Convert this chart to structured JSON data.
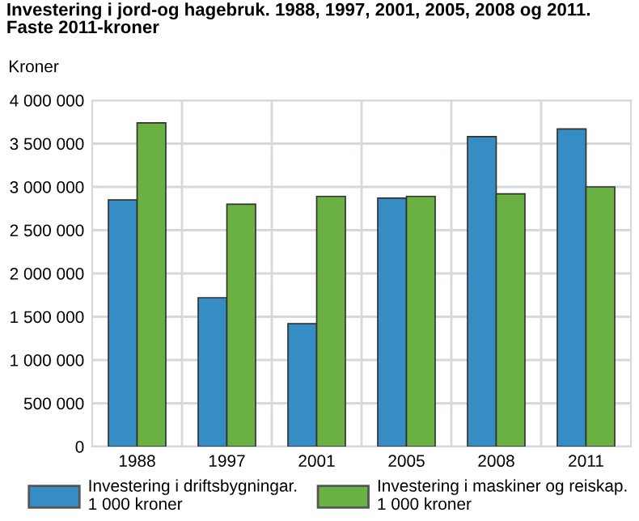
{
  "chart_data": {
    "type": "bar",
    "title": "Investering i jord-og hagebruk. 1988, 1997, 2001, 2005, 2008 og 2011.\nFaste 2011-kroner",
    "annotations": [
      "Kroner"
    ],
    "categories": [
      "1988",
      "1997",
      "2001",
      "2005",
      "2008",
      "2011"
    ],
    "series": [
      {
        "name": "Investering i driftsbygningar.\n1 000 kroner",
        "color": "#368dc4",
        "values": [
          2850000,
          1720000,
          1420000,
          2870000,
          3580000,
          3670000
        ]
      },
      {
        "name": "Investering i maskiner og reiskap.\n1 000 kroner",
        "color": "#6ab043",
        "values": [
          3740000,
          2800000,
          2890000,
          2890000,
          2920000,
          3000000
        ]
      }
    ],
    "ylim": [
      0,
      4000000
    ],
    "yticks": [
      {
        "value": 0,
        "label": "0"
      },
      {
        "value": 500000,
        "label": "500 000"
      },
      {
        "value": 1000000,
        "label": "1 000 000"
      },
      {
        "value": 1500000,
        "label": "1 500 000"
      },
      {
        "value": 2000000,
        "label": "2 000 000"
      },
      {
        "value": 2500000,
        "label": "2 500 000"
      },
      {
        "value": 3000000,
        "label": "3 000 000"
      },
      {
        "value": 3500000,
        "label": "3 500 000"
      },
      {
        "value": 4000000,
        "label": "4 000 000"
      }
    ],
    "grid": true,
    "legend": "bottom"
  }
}
